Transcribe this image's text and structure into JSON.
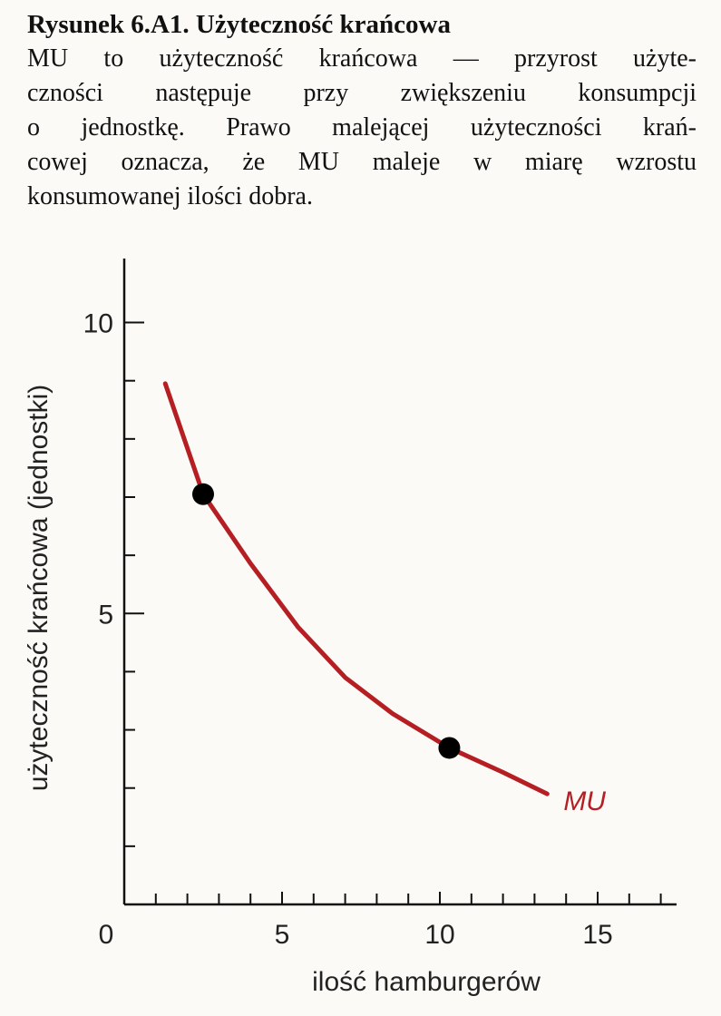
{
  "chart_data": {
    "type": "line",
    "title": "Rysunek 6.A1. Użyteczność krańcowa",
    "caption": [
      "MU to użyteczność krańcowa — przyrost użyte-",
      "czności następuje przy zwiększeniu konsumpcji",
      "o jednostkę. Prawo malejącej użyteczności krań-",
      "cowej oznacza, że MU maleje w miarę wzrostu",
      "konsumowanej ilości dobra."
    ],
    "x_label": "ilość hamburgerów",
    "y_label": "użyteczność krańcowa (jednostki)",
    "x": [
      1.3,
      2.5,
      4,
      5.5,
      7,
      8.5,
      10.3,
      12,
      13.4
    ],
    "series": [
      {
        "name": "MU",
        "color": "#b51f24",
        "values": [
          8.95,
          7.05,
          5.86,
          4.77,
          3.9,
          3.28,
          2.69,
          2.27,
          1.9
        ]
      }
    ],
    "points": {
      "x": [
        2.5,
        10.3
      ],
      "y": [
        7.05,
        2.69
      ],
      "color": "#000000"
    },
    "xlim": [
      0,
      17.5
    ],
    "ylim": [
      0,
      11.1
    ],
    "xticks": [
      0,
      5,
      10,
      15
    ],
    "yticks": [
      5,
      10
    ],
    "xminorticks": [
      1,
      2,
      3,
      4,
      6,
      7,
      8,
      9,
      11,
      12,
      13,
      14,
      16,
      17
    ],
    "yminorticks": [
      1,
      2,
      3,
      4,
      6,
      7,
      8,
      9
    ]
  }
}
